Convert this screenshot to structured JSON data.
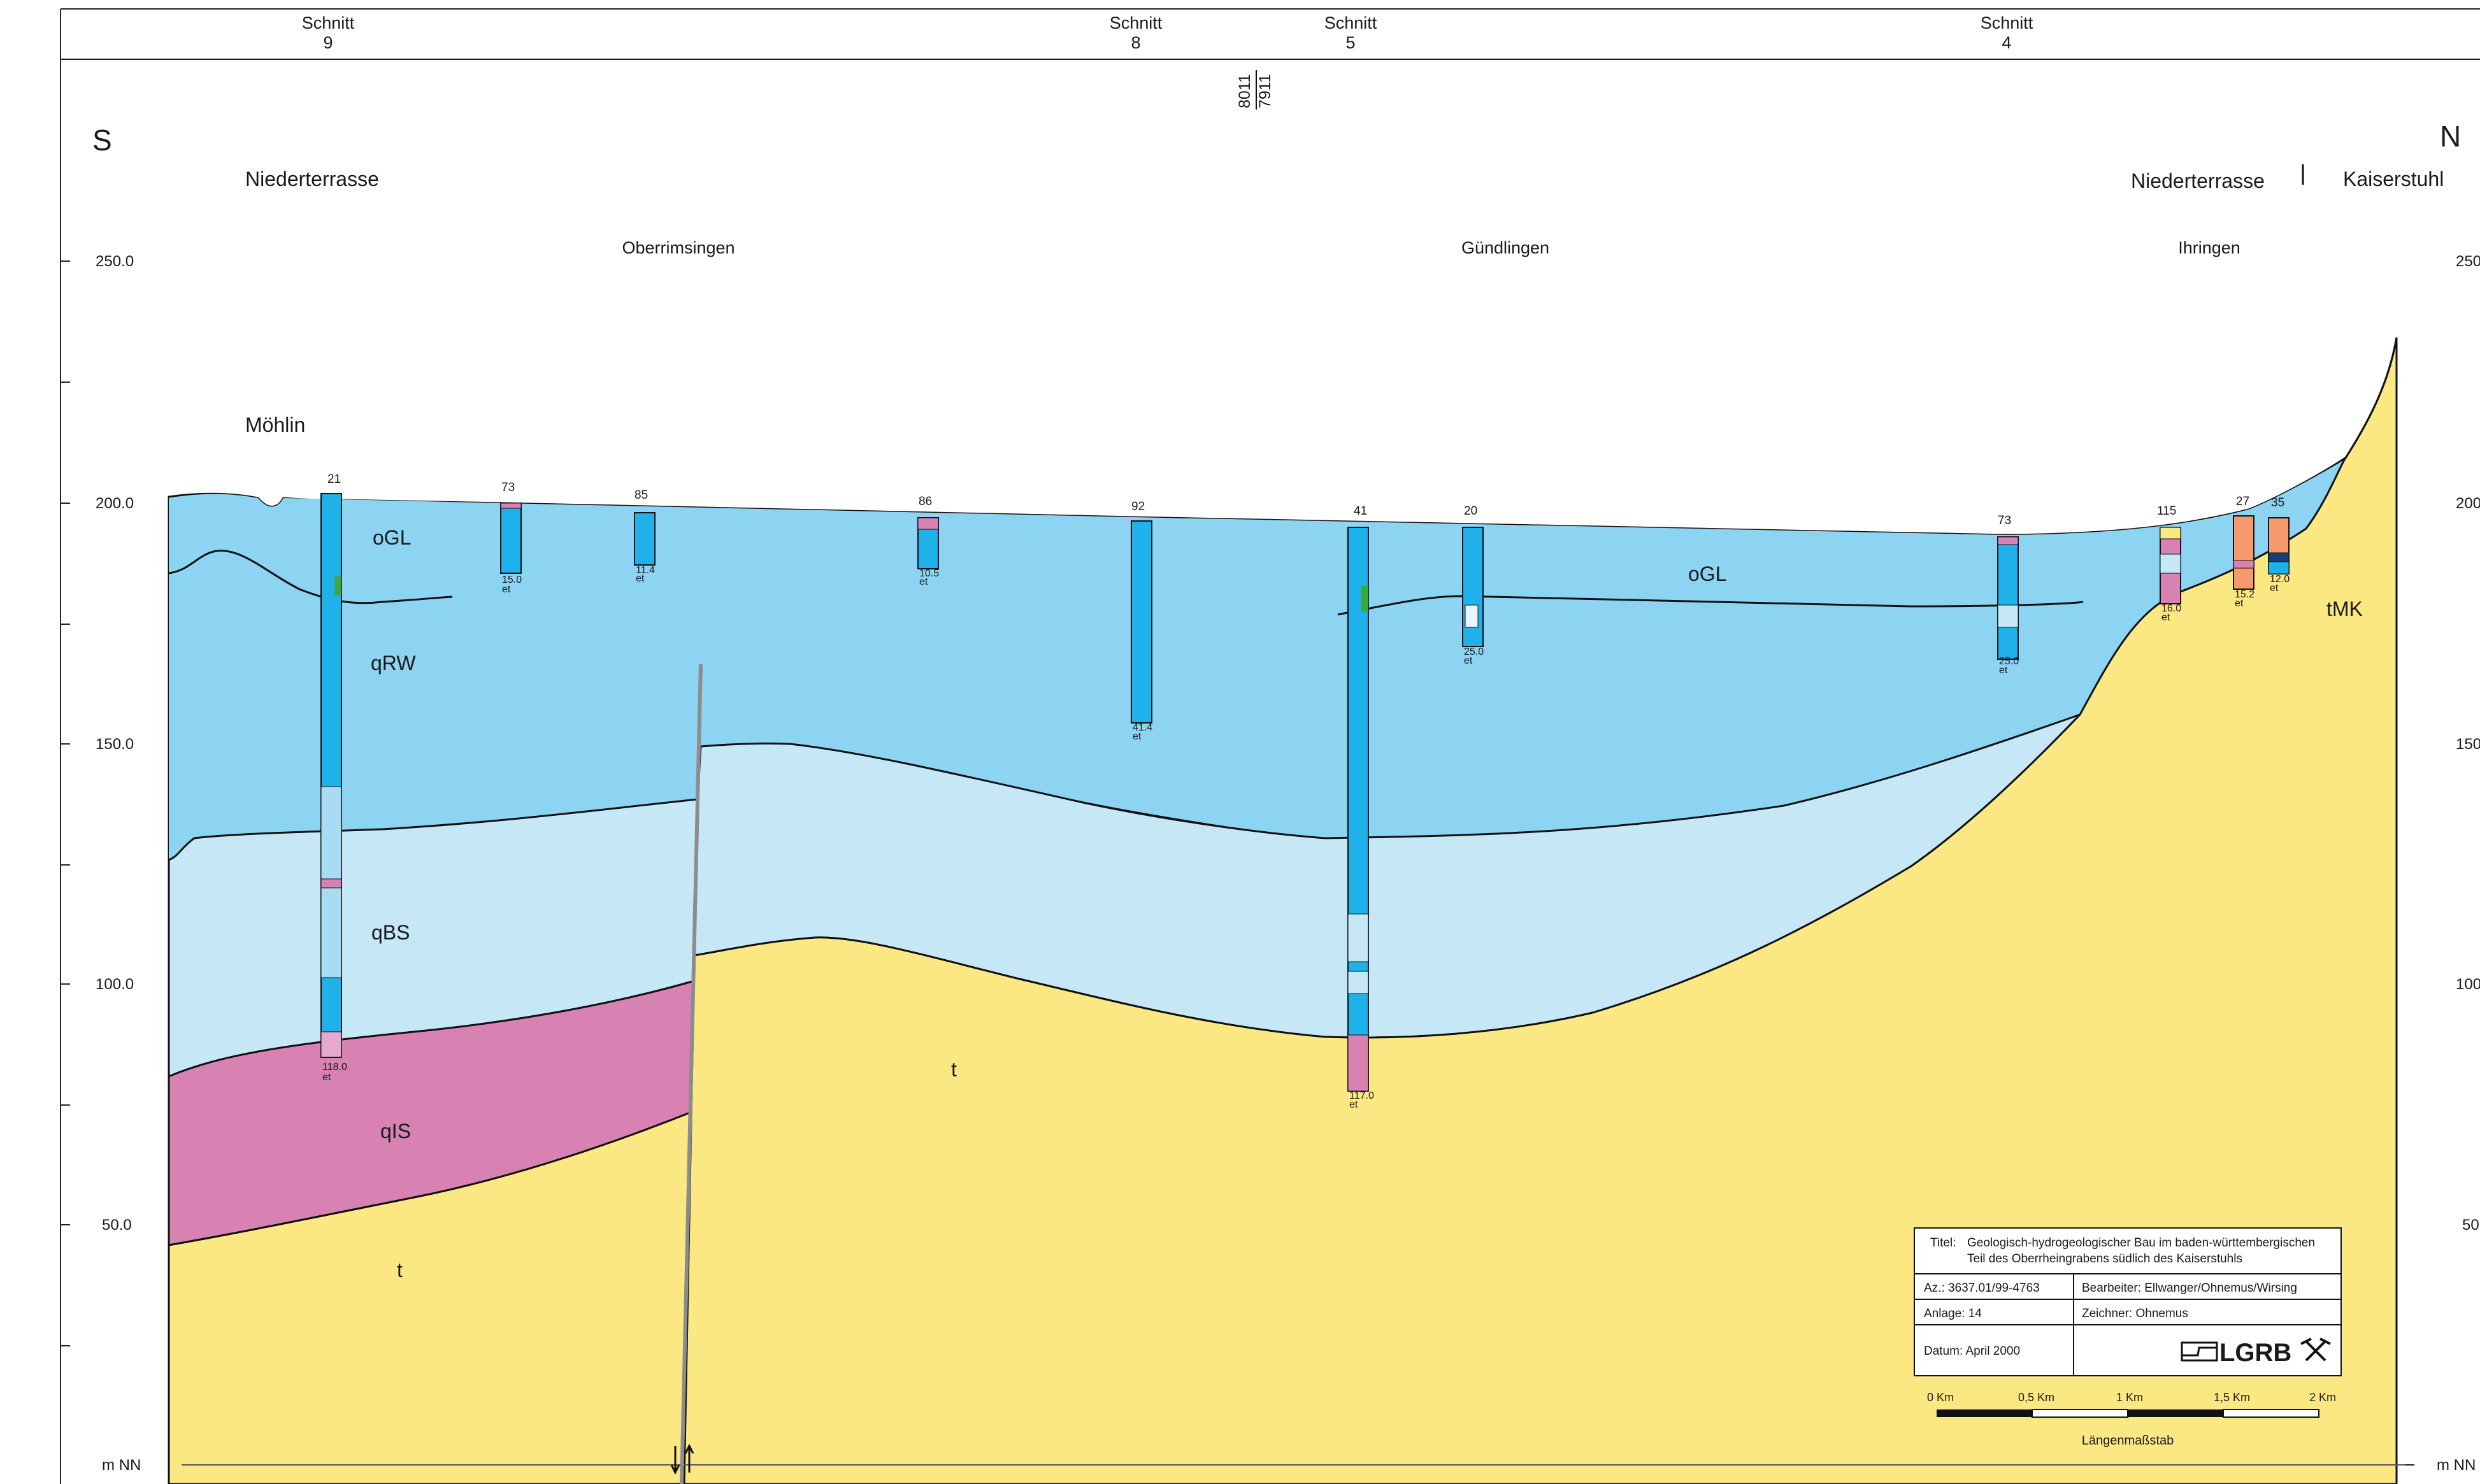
{
  "sections": [
    {
      "top": "Schnitt",
      "num": "9"
    },
    {
      "top": "Schnitt",
      "num": "8"
    },
    {
      "top": "Schnitt",
      "num": "5"
    },
    {
      "top": "Schnitt",
      "num": "4"
    }
  ],
  "map_sheets": {
    "upper": "8011",
    "lower": "7911"
  },
  "directions": {
    "south": "S",
    "north": "N"
  },
  "regions": {
    "left": "Niederterrasse",
    "right_terrace": "Niederterrasse",
    "right_hill": "Kaiserstuhl"
  },
  "places": [
    {
      "name": "Oberrimsingen"
    },
    {
      "name": "Gündlingen"
    },
    {
      "name": "Ihringen"
    },
    {
      "name": "Möhlin"
    }
  ],
  "axis": {
    "unit": "m NN",
    "ticks_left": [
      "250.0",
      "200.0",
      "150.0",
      "100.0",
      "50.0"
    ],
    "ticks_right": [
      "250",
      "200",
      "150",
      "100",
      "50"
    ]
  },
  "layers": [
    {
      "code": "oGL",
      "color": "#8dd3f2"
    },
    {
      "code": "oGL",
      "color": "#8dd3f2"
    },
    {
      "code": "qRW",
      "color": "#8dd3f2"
    },
    {
      "code": "qBS",
      "color": "#c6e8f6"
    },
    {
      "code": "qIS",
      "color": "#d882b4"
    },
    {
      "code": "t",
      "color": "#fce883"
    },
    {
      "code": "t",
      "color": "#fce883"
    },
    {
      "code": "tMK",
      "color": "#fce883"
    }
  ],
  "boreholes": [
    {
      "id": "21",
      "depth": "118.0",
      "note": "et"
    },
    {
      "id": "73",
      "depth": "15.0",
      "note": "et"
    },
    {
      "id": "85",
      "depth": "11.4",
      "note": "et"
    },
    {
      "id": "86",
      "depth": "10.5",
      "note": "et"
    },
    {
      "id": "92",
      "depth": "41.4",
      "note": "et"
    },
    {
      "id": "41",
      "depth": "117.0",
      "note": "et"
    },
    {
      "id": "20",
      "depth": "25.0",
      "note": "et"
    },
    {
      "id": "73",
      "depth": "25.0",
      "note": "et"
    },
    {
      "id": "115",
      "depth": "16.0",
      "note": "et"
    },
    {
      "id": "27",
      "depth": "15.2",
      "note": "et"
    },
    {
      "id": "35",
      "depth": "12.0",
      "note": "et"
    }
  ],
  "title_block": {
    "title_label": "Titel:",
    "title_line1": "Geologisch-hydrogeologischer Bau im baden-württembergischen",
    "title_line2": "Teil des Oberrheingrabens südlich des Kaiserstuhls",
    "az": "Az.:  3637.01/99-4763",
    "bearbeiter": "Bearbeiter:   Ellwanger/Ohnemus/Wirsing",
    "anlage": "Anlage:   14",
    "zeichner": "Zeichner:     Ohnemus",
    "datum": "Datum:   April 2000",
    "logo": "LGRB"
  },
  "scale_bar": {
    "labels": [
      "0 Km",
      "0,5 Km",
      "1 Km",
      "1,5 Km",
      "2 Km"
    ],
    "caption": "Längenmaßstab"
  },
  "colors": {
    "quaternary_gravel": "#8dd3f2",
    "lower_gravel": "#c6e8f6",
    "clay_silt": "#d882b4",
    "tertiary": "#fce883",
    "borehole": "#1fb2ea",
    "fault": "#8c8c8c"
  }
}
